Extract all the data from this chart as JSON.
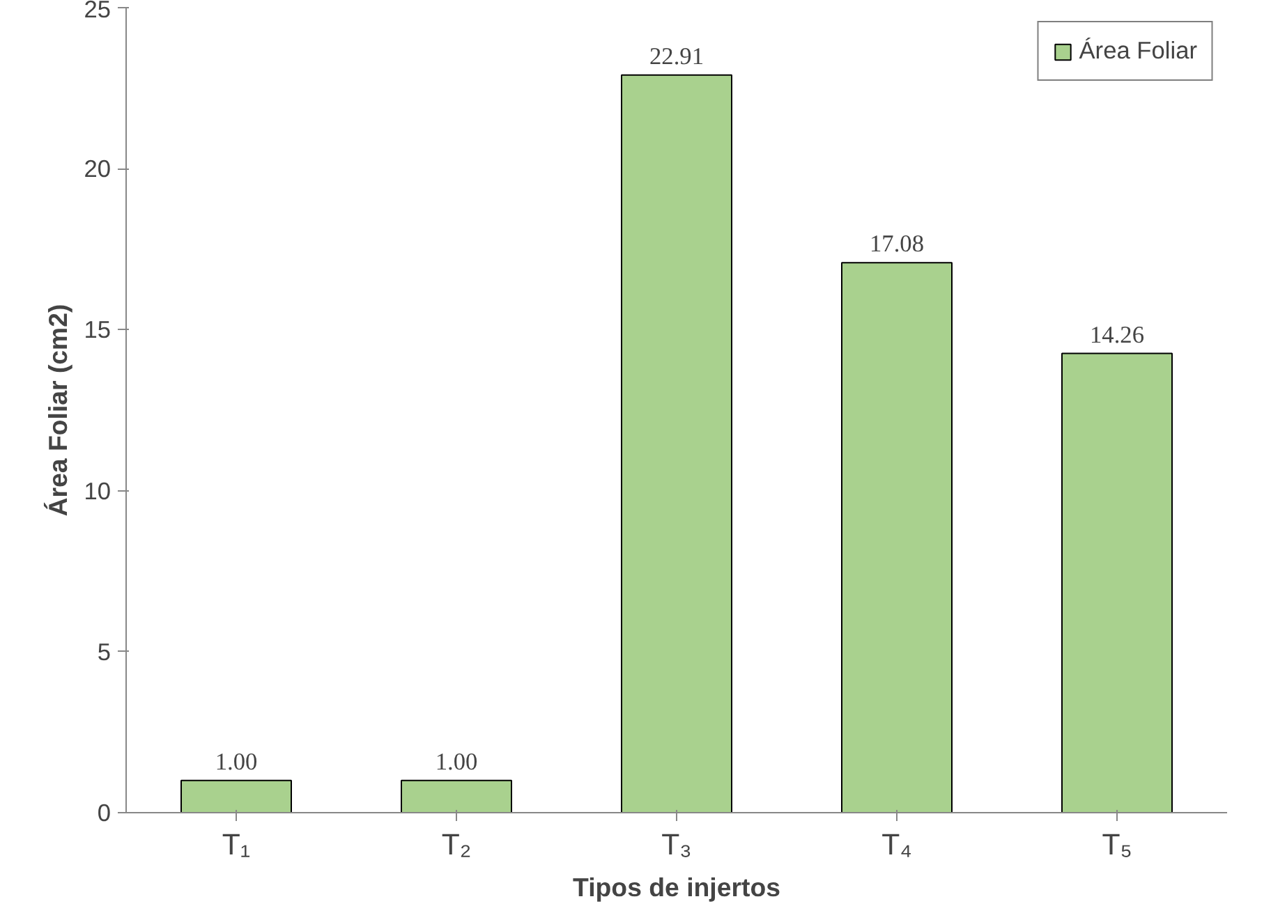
{
  "chart_data": {
    "type": "bar",
    "xlabel": "Tipos de injertos",
    "ylabel": "Área Foliar (cm2)",
    "categories": [
      "T₁",
      "T₂",
      "T₃",
      "T₄",
      "T₅"
    ],
    "series": [
      {
        "name": "Área Foliar",
        "color": "#a9d18e",
        "values": [
          1.0,
          1.0,
          22.91,
          17.08,
          14.26
        ],
        "value_labels": [
          "1.00",
          "1.00",
          "22.91",
          "17.08",
          "14.26"
        ]
      }
    ],
    "ylim": [
      0,
      25
    ],
    "yticks": [
      0,
      5,
      10,
      15,
      20,
      25
    ],
    "grid": false,
    "legend": "top right"
  }
}
